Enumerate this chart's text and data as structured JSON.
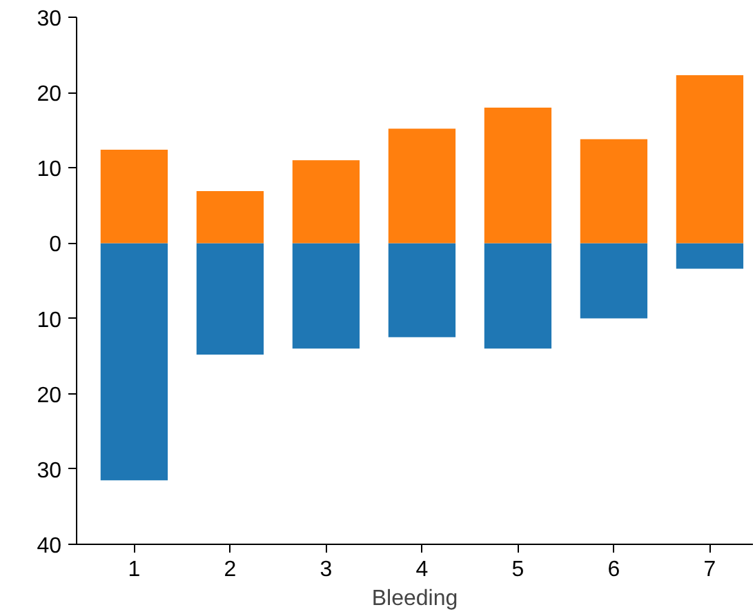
{
  "chart_data": {
    "type": "bar",
    "stacked": true,
    "xlabel": "Bleeding",
    "categories": [
      "1",
      "2",
      "3",
      "4",
      "5",
      "6",
      "7"
    ],
    "series": [
      {
        "color": "#1f77b4",
        "values": [
          -31.5,
          -14.8,
          -14,
          -12.5,
          -14,
          -10,
          -3.4
        ]
      },
      {
        "color": "#ff7f0e",
        "values": [
          12.4,
          6.9,
          11,
          15.2,
          18,
          13.8,
          22.3
        ]
      }
    ],
    "ylim": [
      -40,
      30
    ],
    "yticks": [
      {
        "value": -40,
        "label": "40"
      },
      {
        "value": -30,
        "label": "30"
      },
      {
        "value": -20,
        "label": "20"
      },
      {
        "value": -10,
        "label": "10"
      },
      0,
      10,
      20,
      30
    ],
    "grid": false
  }
}
